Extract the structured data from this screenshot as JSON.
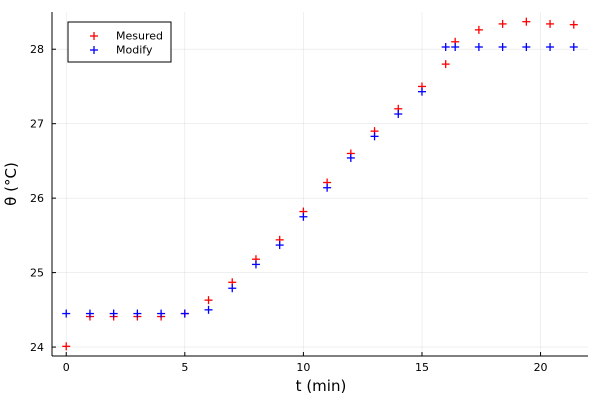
{
  "chart_data": {
    "type": "scatter",
    "title": "",
    "xlabel": "t  (min)",
    "ylabel": "θ (°C)",
    "xlim": [
      -0.6,
      22.0
    ],
    "ylim": [
      23.88,
      28.5
    ],
    "xticks": [
      0,
      5,
      10,
      15,
      20
    ],
    "yticks": [
      24,
      25,
      26,
      27,
      28
    ],
    "grid": true,
    "legend_position": "top-left",
    "marker": "+",
    "series": [
      {
        "name": "Mesured",
        "color": "#ff0000",
        "x": [
          0,
          1,
          2,
          3,
          4,
          5,
          6,
          7,
          8,
          9,
          10,
          11,
          12,
          13,
          14,
          15,
          16,
          16.4,
          17.4,
          18.4,
          19.4,
          20.4,
          21.4
        ],
        "y": [
          24.01,
          24.41,
          24.41,
          24.41,
          24.41,
          24.45,
          24.63,
          24.87,
          25.18,
          25.44,
          25.82,
          26.21,
          26.6,
          26.9,
          27.2,
          27.5,
          27.8,
          28.1,
          28.26,
          28.34,
          28.37,
          28.34,
          28.33
        ]
      },
      {
        "name": "Modify",
        "color": "#0000ff",
        "x": [
          0,
          1,
          2,
          3,
          4,
          5,
          6,
          7,
          8,
          9,
          10,
          11,
          12,
          13,
          14,
          15,
          16,
          16.4,
          17.4,
          18.4,
          19.4,
          20.4,
          21.4
        ],
        "y": [
          24.45,
          24.45,
          24.45,
          24.45,
          24.45,
          24.45,
          24.5,
          24.79,
          25.11,
          25.37,
          25.75,
          26.14,
          26.54,
          26.83,
          27.13,
          27.43,
          28.03,
          28.03,
          28.03,
          28.03,
          28.03,
          28.03,
          28.03
        ]
      }
    ]
  }
}
